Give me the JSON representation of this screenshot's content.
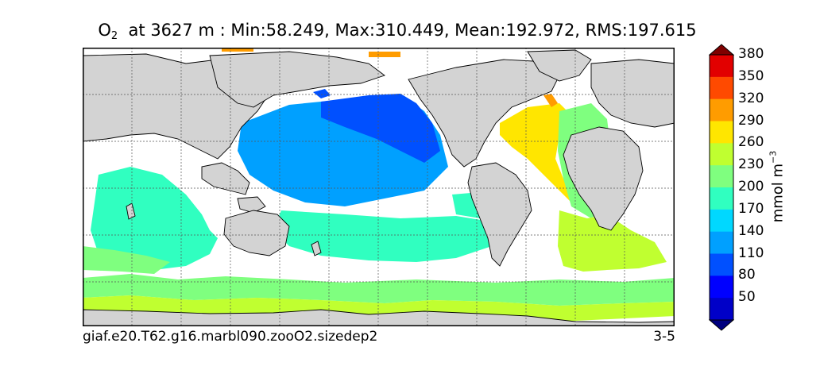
{
  "title": {
    "variable_base": "O",
    "variable_sub": "2",
    "rest": "at 3627 m : Min:58.249, Max:310.449, Mean:192.972, RMS:197.615"
  },
  "footer": {
    "case_name": "giaf.e20.T62.g16.marbl090.zooO2.sizedep2",
    "years": "3-5"
  },
  "colorbar": {
    "label_base": "mmol m",
    "label_exp": "−3",
    "ticks": [
      "50",
      "80",
      "110",
      "140",
      "170",
      "200",
      "230",
      "260",
      "290",
      "320",
      "350",
      "380"
    ],
    "colors": [
      "#00007f",
      "#0000c8",
      "#0000ff",
      "#0050ff",
      "#00a0ff",
      "#00d8ff",
      "#30ffc0",
      "#7fff7f",
      "#c0ff30",
      "#ffe600",
      "#ff9c00",
      "#ff4a00",
      "#e20000",
      "#7f0000"
    ]
  },
  "map": {
    "land_color": "#d3d3d3",
    "missing_color": "#ffffff",
    "gridlines": true,
    "regions": {
      "north_pacific_deep": "#0050ff",
      "north_pacific": "#00a0ff",
      "south_pacific": "#30ffc0",
      "indian_ocean": "#30ffc0",
      "atlantic_north": "#ffe600",
      "atlantic_east": "#7fff7f",
      "south_atlantic": "#c0ff30",
      "southern_ocean": "#7fff7f",
      "arctic_patch": "#ff9c00"
    }
  }
}
